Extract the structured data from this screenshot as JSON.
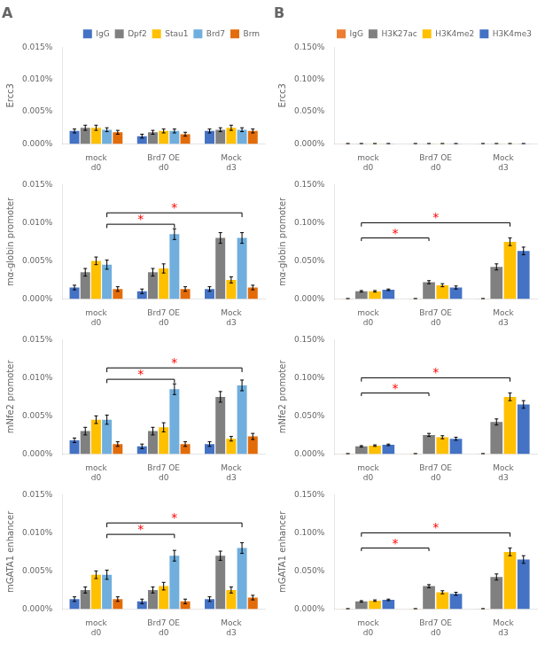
{
  "chart_data": [
    {
      "type": "bar",
      "title": "A",
      "legend": "upper right",
      "grid": false,
      "y_label": "Ercc3",
      "categories": [
        "mock\nd0",
        "Brd7 OE\nd0",
        "Mock\nd3"
      ],
      "ylim": [
        0,
        0.00015
      ],
      "yticks": [
        {
          "value": 0,
          "label": "0.000%"
        },
        {
          "value": 5e-05,
          "label": "0.005%"
        },
        {
          "value": 0.0001,
          "label": "0.010%"
        },
        {
          "value": 0.00015,
          "label": "0.015%"
        }
      ],
      "series": [
        {
          "name": "IgG",
          "color": "#4472C4",
          "values": [
            2e-05,
            1.2e-05,
            2e-05
          ],
          "errors": [
            3e-06,
            3e-06,
            3e-06
          ]
        },
        {
          "name": "Dpf2",
          "color": "#808080",
          "values": [
            2.5e-05,
            1.8e-05,
            2.2e-05
          ],
          "errors": [
            4e-06,
            3e-06,
            3e-06
          ]
        },
        {
          "name": "Stau1",
          "color": "#FFC000",
          "values": [
            2.5e-05,
            2e-05,
            2.5e-05
          ],
          "errors": [
            4e-06,
            3e-06,
            4e-06
          ]
        },
        {
          "name": "Brd7",
          "color": "#70AEDD",
          "values": [
            2.2e-05,
            2e-05,
            2.2e-05
          ],
          "errors": [
            3e-06,
            3e-06,
            3e-06
          ]
        },
        {
          "name": "Brm",
          "color": "#E36C0A",
          "values": [
            1.8e-05,
            1.5e-05,
            2e-05
          ],
          "errors": [
            3e-06,
            3e-06,
            3e-06
          ]
        }
      ],
      "annotations": []
    },
    {
      "type": "bar",
      "title": "B",
      "legend": "upper right",
      "grid": false,
      "y_label": "Ercc3",
      "categories": [
        "mock\nd0",
        "Brd7 OE\nd0",
        "Mock\nd3"
      ],
      "ylim": [
        0,
        0.0015
      ],
      "yticks": [
        {
          "value": 0,
          "label": "0.000%"
        },
        {
          "value": 0.0005,
          "label": "0.050%"
        },
        {
          "value": 0.001,
          "label": "0.100%"
        },
        {
          "value": 0.0015,
          "label": "0.150%"
        }
      ],
      "series": [
        {
          "name": "IgG",
          "color": "#ED7D31",
          "values": [
            3e-06,
            3e-06,
            3e-06
          ],
          "errors": [
            1e-06,
            1e-06,
            1e-06
          ]
        },
        {
          "name": "H3K27ac",
          "color": "#808080",
          "values": [
            3e-06,
            3e-06,
            3e-06
          ],
          "errors": [
            1e-06,
            1e-06,
            1e-06
          ]
        },
        {
          "name": "H3K4me2",
          "color": "#FFC000",
          "values": [
            3e-06,
            3e-06,
            3e-06
          ],
          "errors": [
            1e-06,
            1e-06,
            1e-06
          ]
        },
        {
          "name": "H3K4me3",
          "color": "#4472C4",
          "values": [
            3e-06,
            3e-06,
            3e-06
          ],
          "errors": [
            1e-06,
            1e-06,
            1e-06
          ]
        }
      ],
      "annotations": []
    },
    {
      "type": "bar",
      "grid": false,
      "y_label": "mα-globin promoter",
      "categories": [
        "mock\nd0",
        "Brd7 OE\nd0",
        "Mock\nd3"
      ],
      "ylim": [
        0,
        0.00015
      ],
      "yticks": [
        {
          "value": 0,
          "label": "0.000%"
        },
        {
          "value": 5e-05,
          "label": "0.005%"
        },
        {
          "value": 0.0001,
          "label": "0.010%"
        },
        {
          "value": 0.00015,
          "label": "0.015%"
        }
      ],
      "series": [
        {
          "name": "IgG",
          "color": "#4472C4",
          "values": [
            1.5e-05,
            1e-05,
            1.3e-05
          ],
          "errors": [
            3e-06,
            3e-06,
            3e-06
          ]
        },
        {
          "name": "Dpf2",
          "color": "#808080",
          "values": [
            3.5e-05,
            3.5e-05,
            8e-05
          ],
          "errors": [
            5e-06,
            5e-06,
            7e-06
          ]
        },
        {
          "name": "Stau1",
          "color": "#FFC000",
          "values": [
            5e-05,
            4e-05,
            2.5e-05
          ],
          "errors": [
            5e-06,
            6e-06,
            4e-06
          ]
        },
        {
          "name": "Brd7",
          "color": "#70AEDD",
          "values": [
            4.5e-05,
            8.5e-05,
            8e-05
          ],
          "errors": [
            6e-06,
            7e-06,
            7e-06
          ]
        },
        {
          "name": "Brm",
          "color": "#E36C0A",
          "values": [
            1.3e-05,
            1.3e-05,
            1.5e-05
          ],
          "errors": [
            3e-06,
            3e-06,
            3e-06
          ]
        }
      ],
      "annotations": [
        {
          "from_category": 0,
          "from_series": 3,
          "to_category": 1,
          "to_series": 3,
          "y": 9.8e-05,
          "text_y": 0.0001,
          "text": "*",
          "color": "red"
        },
        {
          "from_category": 0,
          "from_series": 3,
          "to_category": 2,
          "to_series": 3,
          "y": 0.000113,
          "text_y": 0.000115,
          "text": "*",
          "color": "red"
        }
      ]
    },
    {
      "type": "bar",
      "grid": false,
      "y_label": "mα-globin promoter",
      "categories": [
        "mock\nd0",
        "Brd7 OE\nd0",
        "Mock\nd3"
      ],
      "ylim": [
        0,
        0.0015
      ],
      "yticks": [
        {
          "value": 0,
          "label": "0.000%"
        },
        {
          "value": 0.0005,
          "label": "0.050%"
        },
        {
          "value": 0.001,
          "label": "0.100%"
        },
        {
          "value": 0.0015,
          "label": "0.150%"
        }
      ],
      "series": [
        {
          "name": "IgG",
          "color": "#ED7D31",
          "values": [
            3e-06,
            3e-06,
            3e-06
          ],
          "errors": [
            1e-06,
            1e-06,
            1e-06
          ]
        },
        {
          "name": "H3K27ac",
          "color": "#808080",
          "values": [
            0.0001,
            0.00022,
            0.00042
          ],
          "errors": [
            1e-05,
            2e-05,
            4e-05
          ]
        },
        {
          "name": "H3K4me2",
          "color": "#FFC000",
          "values": [
            0.0001,
            0.00018,
            0.00075
          ],
          "errors": [
            1e-05,
            2e-05,
            5e-05
          ]
        },
        {
          "name": "H3K4me3",
          "color": "#4472C4",
          "values": [
            0.00012,
            0.00015,
            0.00063
          ],
          "errors": [
            1e-05,
            2e-05,
            5e-05
          ]
        }
      ],
      "annotations": [
        {
          "from_category": 0,
          "from_series": 1,
          "to_category": 1,
          "to_series": 1,
          "y": 0.0008,
          "text_y": 0.00082,
          "text": "*",
          "color": "red"
        },
        {
          "from_category": 0,
          "from_series": 1,
          "to_category": 2,
          "to_series": 2,
          "y": 0.001,
          "text_y": 0.00102,
          "text": "*",
          "color": "red"
        }
      ]
    },
    {
      "type": "bar",
      "grid": false,
      "y_label": "mNfe2 promoter",
      "categories": [
        "mock\nd0",
        "Brd7 OE\nd0",
        "Mock\nd3"
      ],
      "ylim": [
        0,
        0.00015
      ],
      "yticks": [
        {
          "value": 0,
          "label": "0.000%"
        },
        {
          "value": 5e-05,
          "label": "0.005%"
        },
        {
          "value": 0.0001,
          "label": "0.010%"
        },
        {
          "value": 0.00015,
          "label": "0.015%"
        }
      ],
      "series": [
        {
          "name": "IgG",
          "color": "#4472C4",
          "values": [
            1.8e-05,
            1e-05,
            1.3e-05
          ],
          "errors": [
            3e-06,
            3e-06,
            3e-06
          ]
        },
        {
          "name": "Dpf2",
          "color": "#808080",
          "values": [
            3e-05,
            3e-05,
            7.5e-05
          ],
          "errors": [
            5e-06,
            5e-06,
            7e-06
          ]
        },
        {
          "name": "Stau1",
          "color": "#FFC000",
          "values": [
            4.5e-05,
            3.5e-05,
            2e-05
          ],
          "errors": [
            5e-06,
            6e-06,
            3e-06
          ]
        },
        {
          "name": "Brd7",
          "color": "#70AEDD",
          "values": [
            4.5e-05,
            8.5e-05,
            9e-05
          ],
          "errors": [
            6e-06,
            7e-06,
            7e-06
          ]
        },
        {
          "name": "Brm",
          "color": "#E36C0A",
          "values": [
            1.3e-05,
            1.3e-05,
            2.3e-05
          ],
          "errors": [
            3e-06,
            3e-06,
            4e-06
          ]
        }
      ],
      "annotations": [
        {
          "from_category": 0,
          "from_series": 3,
          "to_category": 1,
          "to_series": 3,
          "y": 9.8e-05,
          "text_y": 0.0001,
          "text": "*",
          "color": "red"
        },
        {
          "from_category": 0,
          "from_series": 3,
          "to_category": 2,
          "to_series": 3,
          "y": 0.000113,
          "text_y": 0.000115,
          "text": "*",
          "color": "red"
        }
      ]
    },
    {
      "type": "bar",
      "grid": false,
      "y_label": "mNfe2 promoter",
      "categories": [
        "mock\nd0",
        "Brd7 OE\nd0",
        "Mock\nd3"
      ],
      "ylim": [
        0,
        0.0015
      ],
      "yticks": [
        {
          "value": 0,
          "label": "0.000%"
        },
        {
          "value": 0.0005,
          "label": "0.050%"
        },
        {
          "value": 0.001,
          "label": "0.100%"
        },
        {
          "value": 0.0015,
          "label": "0.150%"
        }
      ],
      "series": [
        {
          "name": "IgG",
          "color": "#ED7D31",
          "values": [
            3e-06,
            3e-06,
            3e-06
          ],
          "errors": [
            1e-06,
            1e-06,
            1e-06
          ]
        },
        {
          "name": "H3K27ac",
          "color": "#808080",
          "values": [
            0.0001,
            0.00025,
            0.00042
          ],
          "errors": [
            1e-05,
            2e-05,
            4e-05
          ]
        },
        {
          "name": "H3K4me2",
          "color": "#FFC000",
          "values": [
            0.00011,
            0.00022,
            0.00075
          ],
          "errors": [
            1e-05,
            2e-05,
            5e-05
          ]
        },
        {
          "name": "H3K4me3",
          "color": "#4472C4",
          "values": [
            0.00012,
            0.0002,
            0.00065
          ],
          "errors": [
            1e-05,
            2e-05,
            5e-05
          ]
        }
      ],
      "annotations": [
        {
          "from_category": 0,
          "from_series": 1,
          "to_category": 1,
          "to_series": 1,
          "y": 0.0008,
          "text_y": 0.00082,
          "text": "*",
          "color": "red"
        },
        {
          "from_category": 0,
          "from_series": 1,
          "to_category": 2,
          "to_series": 2,
          "y": 0.001,
          "text_y": 0.00102,
          "text": "*",
          "color": "red"
        }
      ]
    },
    {
      "type": "bar",
      "grid": false,
      "y_label": "mGATA1 enhancer",
      "categories": [
        "mock\nd0",
        "Brd7 OE\nd0",
        "Mock\nd3"
      ],
      "ylim": [
        0,
        0.00015
      ],
      "yticks": [
        {
          "value": 0,
          "label": "0.000%"
        },
        {
          "value": 5e-05,
          "label": "0.005%"
        },
        {
          "value": 0.0001,
          "label": "0.010%"
        },
        {
          "value": 0.00015,
          "label": "0.015%"
        }
      ],
      "series": [
        {
          "name": "IgG",
          "color": "#4472C4",
          "values": [
            1.3e-05,
            1e-05,
            1.3e-05
          ],
          "errors": [
            3e-06,
            3e-06,
            3e-06
          ]
        },
        {
          "name": "Dpf2",
          "color": "#808080",
          "values": [
            2.5e-05,
            2.5e-05,
            7e-05
          ],
          "errors": [
            4e-06,
            4e-06,
            6e-06
          ]
        },
        {
          "name": "Stau1",
          "color": "#FFC000",
          "values": [
            4.5e-05,
            3e-05,
            2.5e-05
          ],
          "errors": [
            5e-06,
            5e-06,
            4e-06
          ]
        },
        {
          "name": "Brd7",
          "color": "#70AEDD",
          "values": [
            4.5e-05,
            7e-05,
            8e-05
          ],
          "errors": [
            6e-06,
            7e-06,
            7e-06
          ]
        },
        {
          "name": "Brm",
          "color": "#E36C0A",
          "values": [
            1.3e-05,
            1e-05,
            1.5e-05
          ],
          "errors": [
            3e-06,
            3e-06,
            3e-06
          ]
        }
      ],
      "annotations": [
        {
          "from_category": 0,
          "from_series": 3,
          "to_category": 1,
          "to_series": 3,
          "y": 9.8e-05,
          "text_y": 0.0001,
          "text": "*",
          "color": "red"
        },
        {
          "from_category": 0,
          "from_series": 3,
          "to_category": 2,
          "to_series": 3,
          "y": 0.000113,
          "text_y": 0.000115,
          "text": "*",
          "color": "red"
        }
      ]
    },
    {
      "type": "bar",
      "grid": false,
      "y_label": "mGATA1 enhancer",
      "categories": [
        "mock\nd0",
        "Brd7 OE\nd0",
        "Mock\nd3"
      ],
      "ylim": [
        0,
        0.0015
      ],
      "yticks": [
        {
          "value": 0,
          "label": "0.000%"
        },
        {
          "value": 0.0005,
          "label": "0.050%"
        },
        {
          "value": 0.001,
          "label": "0.100%"
        },
        {
          "value": 0.0015,
          "label": "0.150%"
        }
      ],
      "series": [
        {
          "name": "IgG",
          "color": "#ED7D31",
          "values": [
            3e-06,
            3e-06,
            3e-06
          ],
          "errors": [
            1e-06,
            1e-06,
            1e-06
          ]
        },
        {
          "name": "H3K27ac",
          "color": "#808080",
          "values": [
            0.0001,
            0.0003,
            0.00042
          ],
          "errors": [
            1e-05,
            2e-05,
            4e-05
          ]
        },
        {
          "name": "H3K4me2",
          "color": "#FFC000",
          "values": [
            0.00011,
            0.00022,
            0.00075
          ],
          "errors": [
            1e-05,
            2e-05,
            5e-05
          ]
        },
        {
          "name": "H3K4me3",
          "color": "#4472C4",
          "values": [
            0.00012,
            0.0002,
            0.00065
          ],
          "errors": [
            1e-05,
            2e-05,
            5e-05
          ]
        }
      ],
      "annotations": [
        {
          "from_category": 0,
          "from_series": 1,
          "to_category": 1,
          "to_series": 1,
          "y": 0.0008,
          "text_y": 0.00082,
          "text": "*",
          "color": "red"
        },
        {
          "from_category": 0,
          "from_series": 1,
          "to_category": 2,
          "to_series": 2,
          "y": 0.001,
          "text_y": 0.00102,
          "text": "*",
          "color": "red"
        }
      ]
    }
  ]
}
